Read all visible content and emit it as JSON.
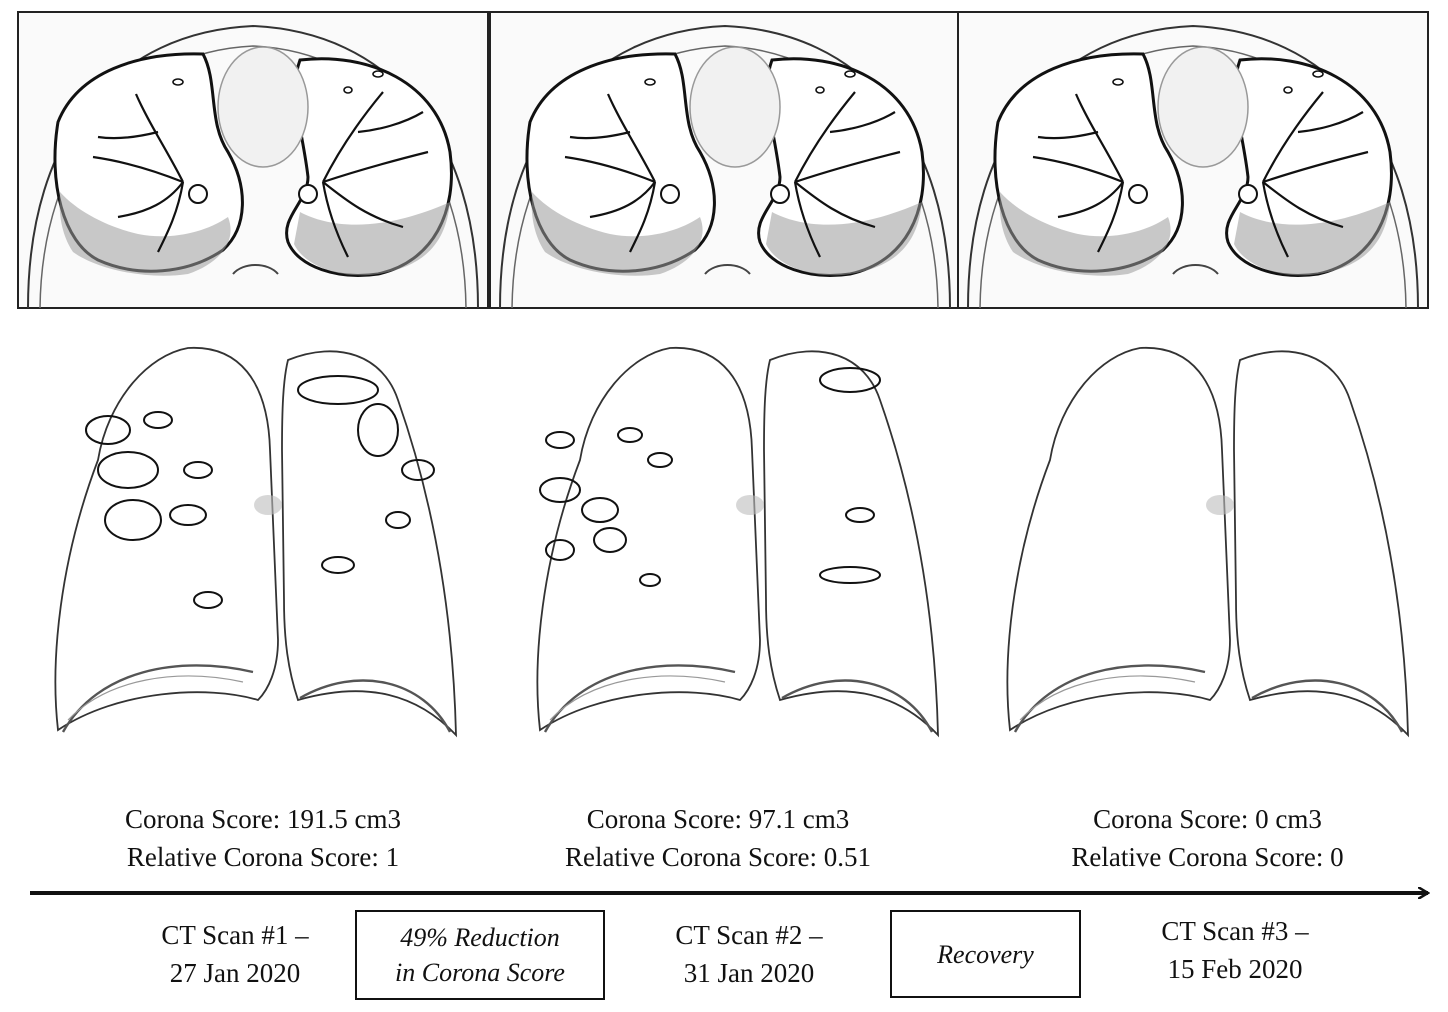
{
  "scans": [
    {
      "id": "scan-1",
      "score": "Corona Score: 191.5 cm3",
      "relative": "Relative Corona Score: 1",
      "label_line1": "CT Scan #1 –",
      "label_line2": "27 Jan 2020"
    },
    {
      "id": "scan-2",
      "score": "Corona Score: 97.1 cm3",
      "relative": "Relative Corona Score: 0.51",
      "label_line1": "CT Scan #2 –",
      "label_line2": "31 Jan 2020"
    },
    {
      "id": "scan-3",
      "score": "Corona Score: 0 cm3",
      "relative": "Relative Corona Score: 0",
      "label_line1": "CT Scan #3 –",
      "label_line2": "15 Feb 2020"
    }
  ],
  "transitions": [
    {
      "line1": "49% Reduction",
      "line2": "in Corona Score"
    },
    {
      "line1": "Recovery"
    }
  ]
}
